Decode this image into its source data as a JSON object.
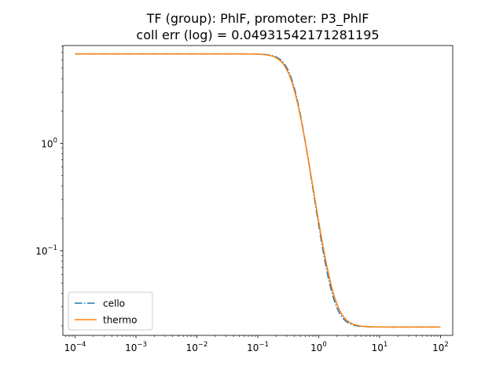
{
  "chart_data": {
    "type": "line",
    "title_line1": "TF (group): PhlF, promoter: P3_PhlF",
    "title_line2": "coll err (log) = 0.04931542171281195",
    "xlabel": "",
    "ylabel": "",
    "xscale": "log",
    "yscale": "log",
    "xlim": [
      6.31e-05,
      158.5
    ],
    "ylim": [
      0.0163,
      8.13
    ],
    "grid": false,
    "legend_position": "lower-left",
    "x_ticks": [
      {
        "value": 0.0001,
        "base": "10",
        "exp": "−4"
      },
      {
        "value": 0.001,
        "base": "10",
        "exp": "−3"
      },
      {
        "value": 0.01,
        "base": "10",
        "exp": "−2"
      },
      {
        "value": 0.1,
        "base": "10",
        "exp": "−1"
      },
      {
        "value": 1,
        "base": "10",
        "exp": "0"
      },
      {
        "value": 10,
        "base": "10",
        "exp": "1"
      },
      {
        "value": 100,
        "base": "10",
        "exp": "2"
      }
    ],
    "y_ticks": [
      {
        "value": 0.1,
        "base": "10",
        "exp": "−1"
      },
      {
        "value": 1,
        "base": "10",
        "exp": "0"
      }
    ],
    "series": [
      {
        "name": "cello",
        "color": "#1f77b4",
        "linestyle": "dashdot",
        "ymin": 0.0195,
        "ymax": 6.8,
        "K": 0.39,
        "n": 4.0
      },
      {
        "name": "thermo",
        "color": "#ff7f0e",
        "linestyle": "solid",
        "ymin": 0.0195,
        "ymax": 6.8,
        "K": 0.38,
        "n": 3.8
      }
    ]
  }
}
